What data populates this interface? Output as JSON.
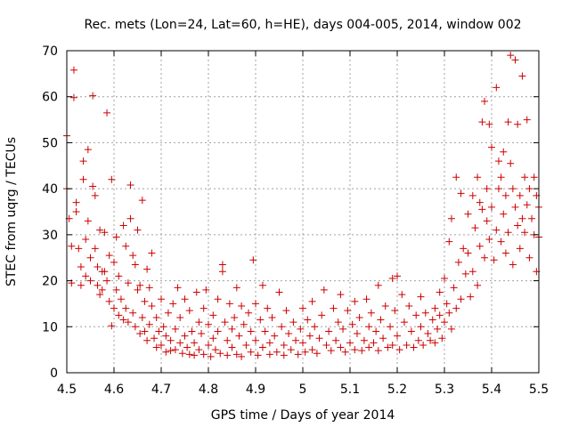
{
  "chart_data": {
    "type": "scatter",
    "title": "Rec. mets (Lon=24, Lat=60, h=HE), days 004-005, 2014, window 002",
    "xlabel": "GPS time / Days of year 2014",
    "ylabel": "STEC from uqrg / TECUs",
    "xlim": [
      4.5,
      5.5
    ],
    "ylim": [
      0,
      70
    ],
    "xticks": [
      "4.5",
      "4.6",
      "4.7",
      "4.8",
      "4.9",
      "5",
      "5.1",
      "5.2",
      "5.3",
      "5.4",
      "5.5"
    ],
    "yticks": [
      "0",
      "10",
      "20",
      "30",
      "40",
      "50",
      "60",
      "70"
    ],
    "grid": true,
    "marker": "+",
    "color": "#cc0000",
    "series": [
      {
        "points": [
          [
            4.5,
            51.5
          ],
          [
            4.5,
            40.0
          ],
          [
            4.505,
            33.5
          ],
          [
            4.51,
            27.5
          ],
          [
            4.51,
            19.5
          ],
          [
            4.515,
            65.8
          ],
          [
            4.515,
            59.8
          ],
          [
            4.52,
            37.0
          ],
          [
            4.52,
            35.0
          ],
          [
            4.525,
            27.0
          ],
          [
            4.53,
            23.0
          ],
          [
            4.53,
            19.0
          ],
          [
            4.535,
            46.0
          ],
          [
            4.535,
            42.0
          ],
          [
            4.54,
            29.0
          ],
          [
            4.54,
            21.0
          ],
          [
            4.545,
            48.5
          ],
          [
            4.545,
            33.0
          ],
          [
            4.55,
            25.0
          ],
          [
            4.55,
            20.0
          ],
          [
            4.555,
            60.2
          ],
          [
            4.555,
            40.5
          ],
          [
            4.56,
            38.5
          ],
          [
            4.56,
            27.0
          ],
          [
            4.565,
            23.0
          ],
          [
            4.565,
            19.0
          ],
          [
            4.57,
            31.0
          ],
          [
            4.57,
            17.0
          ],
          [
            4.575,
            22.0
          ],
          [
            4.575,
            18.0
          ],
          [
            4.58,
            30.5
          ],
          [
            4.58,
            22.0
          ],
          [
            4.585,
            56.5
          ],
          [
            4.585,
            20.0
          ],
          [
            4.59,
            25.5
          ],
          [
            4.59,
            15.5
          ],
          [
            4.595,
            42.0
          ],
          [
            4.595,
            10.2
          ],
          [
            4.6,
            24.0
          ],
          [
            4.6,
            14.0
          ],
          [
            4.605,
            29.5
          ],
          [
            4.605,
            18.0
          ],
          [
            4.61,
            21.0
          ],
          [
            4.61,
            12.5
          ],
          [
            4.615,
            16.0
          ],
          [
            4.62,
            32.0
          ],
          [
            4.62,
            11.5
          ],
          [
            4.625,
            27.5
          ],
          [
            4.625,
            14.0
          ],
          [
            4.63,
            19.5
          ],
          [
            4.63,
            11.0
          ],
          [
            4.635,
            40.8
          ],
          [
            4.635,
            33.5
          ],
          [
            4.64,
            25.5
          ],
          [
            4.64,
            13.0
          ],
          [
            4.645,
            23.5
          ],
          [
            4.645,
            10.0
          ],
          [
            4.65,
            31.0
          ],
          [
            4.65,
            18.0
          ],
          [
            4.655,
            19.0
          ],
          [
            4.655,
            8.5
          ],
          [
            4.66,
            37.5
          ],
          [
            4.66,
            12.0
          ],
          [
            4.665,
            15.5
          ],
          [
            4.665,
            9.0
          ],
          [
            4.67,
            22.5
          ],
          [
            4.67,
            7.0
          ],
          [
            4.675,
            18.5
          ],
          [
            4.675,
            10.5
          ],
          [
            4.68,
            26.0
          ],
          [
            4.68,
            14.5
          ],
          [
            4.685,
            7.5
          ],
          [
            4.69,
            12.0
          ],
          [
            4.69,
            5.5
          ],
          [
            4.695,
            9.0
          ],
          [
            4.7,
            16.0
          ],
          [
            4.7,
            6.0
          ],
          [
            4.705,
            10.0
          ],
          [
            4.71,
            8.0
          ],
          [
            4.71,
            4.5
          ],
          [
            4.715,
            13.0
          ],
          [
            4.72,
            7.0
          ],
          [
            4.72,
            4.8
          ],
          [
            4.725,
            15.0
          ],
          [
            4.73,
            9.5
          ],
          [
            4.73,
            5.0
          ],
          [
            4.735,
            18.5
          ],
          [
            4.74,
            12.0
          ],
          [
            4.74,
            6.5
          ],
          [
            4.745,
            4.2
          ],
          [
            4.75,
            16.0
          ],
          [
            4.75,
            8.0
          ],
          [
            4.755,
            5.5
          ],
          [
            4.76,
            13.5
          ],
          [
            4.76,
            4.0
          ],
          [
            4.765,
            9.0
          ],
          [
            4.77,
            6.5
          ],
          [
            4.77,
            3.8
          ],
          [
            4.775,
            17.5
          ],
          [
            4.78,
            11.0
          ],
          [
            4.78,
            5.0
          ],
          [
            4.785,
            8.5
          ],
          [
            4.79,
            14.0
          ],
          [
            4.79,
            4.0
          ],
          [
            4.795,
            18.0
          ],
          [
            4.8,
            10.5
          ],
          [
            4.8,
            6.0
          ],
          [
            4.805,
            3.5
          ],
          [
            4.81,
            12.5
          ],
          [
            4.81,
            7.5
          ],
          [
            4.815,
            5.0
          ],
          [
            4.82,
            16.0
          ],
          [
            4.82,
            9.0
          ],
          [
            4.825,
            4.2
          ],
          [
            4.83,
            23.5
          ],
          [
            4.83,
            22.0
          ],
          [
            4.835,
            11.0
          ],
          [
            4.84,
            7.0
          ],
          [
            4.84,
            3.8
          ],
          [
            4.845,
            15.0
          ],
          [
            4.85,
            9.5
          ],
          [
            4.85,
            5.5
          ],
          [
            4.855,
            12.0
          ],
          [
            4.86,
            18.5
          ],
          [
            4.86,
            4.0
          ],
          [
            4.865,
            8.0
          ],
          [
            4.87,
            14.5
          ],
          [
            4.87,
            3.5
          ],
          [
            4.875,
            10.5
          ],
          [
            4.88,
            6.0
          ],
          [
            4.885,
            13.0
          ],
          [
            4.89,
            9.0
          ],
          [
            4.89,
            4.5
          ],
          [
            4.895,
            24.5
          ],
          [
            4.9,
            15.0
          ],
          [
            4.9,
            7.0
          ],
          [
            4.905,
            3.8
          ],
          [
            4.91,
            11.5
          ],
          [
            4.915,
            19.0
          ],
          [
            4.915,
            5.5
          ],
          [
            4.92,
            9.0
          ],
          [
            4.925,
            14.0
          ],
          [
            4.93,
            6.5
          ],
          [
            4.93,
            4.0
          ],
          [
            4.935,
            12.0
          ],
          [
            4.94,
            8.0
          ],
          [
            4.945,
            4.5
          ],
          [
            4.95,
            17.5
          ],
          [
            4.955,
            10.0
          ],
          [
            4.96,
            6.0
          ],
          [
            4.96,
            3.8
          ],
          [
            4.965,
            13.5
          ],
          [
            4.97,
            8.5
          ],
          [
            4.975,
            5.0
          ],
          [
            4.98,
            11.0
          ],
          [
            4.985,
            7.0
          ],
          [
            4.99,
            4.0
          ],
          [
            4.995,
            9.5
          ],
          [
            5.0,
            14.0
          ],
          [
            5.0,
            6.5
          ],
          [
            5.005,
            4.5
          ],
          [
            5.01,
            11.5
          ],
          [
            5.015,
            8.0
          ],
          [
            5.02,
            15.5
          ],
          [
            5.02,
            5.0
          ],
          [
            5.025,
            10.0
          ],
          [
            5.03,
            4.2
          ],
          [
            5.035,
            7.5
          ],
          [
            5.04,
            12.5
          ],
          [
            5.045,
            18.0
          ],
          [
            5.05,
            6.0
          ],
          [
            5.055,
            9.0
          ],
          [
            5.06,
            4.8
          ],
          [
            5.065,
            14.0
          ],
          [
            5.07,
            7.0
          ],
          [
            5.075,
            11.0
          ],
          [
            5.08,
            17.0
          ],
          [
            5.08,
            5.5
          ],
          [
            5.085,
            9.5
          ],
          [
            5.09,
            4.5
          ],
          [
            5.095,
            13.5
          ],
          [
            5.1,
            6.5
          ],
          [
            5.105,
            10.5
          ],
          [
            5.11,
            15.5
          ],
          [
            5.11,
            5.0
          ],
          [
            5.115,
            8.5
          ],
          [
            5.12,
            12.0
          ],
          [
            5.125,
            4.8
          ],
          [
            5.13,
            7.0
          ],
          [
            5.135,
            16.0
          ],
          [
            5.14,
            10.0
          ],
          [
            5.14,
            5.5
          ],
          [
            5.145,
            13.0
          ],
          [
            5.15,
            6.5
          ],
          [
            5.155,
            9.0
          ],
          [
            5.16,
            19.0
          ],
          [
            5.16,
            4.8
          ],
          [
            5.165,
            11.5
          ],
          [
            5.17,
            7.5
          ],
          [
            5.175,
            14.5
          ],
          [
            5.18,
            5.5
          ],
          [
            5.185,
            10.0
          ],
          [
            5.19,
            20.5
          ],
          [
            5.19,
            6.0
          ],
          [
            5.195,
            13.5
          ],
          [
            5.2,
            21.0
          ],
          [
            5.2,
            8.0
          ],
          [
            5.205,
            5.0
          ],
          [
            5.21,
            17.0
          ],
          [
            5.215,
            11.0
          ],
          [
            5.22,
            6.0
          ],
          [
            5.225,
            14.5
          ],
          [
            5.23,
            9.0
          ],
          [
            5.235,
            5.5
          ],
          [
            5.24,
            12.5
          ],
          [
            5.245,
            7.0
          ],
          [
            5.25,
            16.5
          ],
          [
            5.25,
            10.0
          ],
          [
            5.255,
            6.0
          ],
          [
            5.26,
            13.0
          ],
          [
            5.265,
            8.5
          ],
          [
            5.27,
            7.0
          ],
          [
            5.275,
            11.5
          ],
          [
            5.28,
            14.0
          ],
          [
            5.28,
            6.5
          ],
          [
            5.285,
            9.5
          ],
          [
            5.29,
            17.5
          ],
          [
            5.29,
            12.5
          ],
          [
            5.295,
            7.5
          ],
          [
            5.3,
            20.5
          ],
          [
            5.3,
            11.0
          ],
          [
            5.305,
            15.0
          ],
          [
            5.31,
            28.5
          ],
          [
            5.31,
            13.0
          ],
          [
            5.315,
            33.5
          ],
          [
            5.315,
            9.5
          ],
          [
            5.32,
            18.5
          ],
          [
            5.325,
            42.5
          ],
          [
            5.325,
            14.0
          ],
          [
            5.33,
            24.0
          ],
          [
            5.335,
            39.0
          ],
          [
            5.335,
            16.0
          ],
          [
            5.34,
            27.0
          ],
          [
            5.345,
            21.5
          ],
          [
            5.35,
            34.5
          ],
          [
            5.35,
            26.0
          ],
          [
            5.355,
            16.5
          ],
          [
            5.36,
            38.5
          ],
          [
            5.36,
            22.0
          ],
          [
            5.365,
            31.5
          ],
          [
            5.37,
            42.5
          ],
          [
            5.37,
            19.0
          ],
          [
            5.375,
            37.0
          ],
          [
            5.375,
            27.5
          ],
          [
            5.38,
            54.5
          ],
          [
            5.38,
            35.5
          ],
          [
            5.385,
            59.0
          ],
          [
            5.385,
            25.0
          ],
          [
            5.39,
            40.0
          ],
          [
            5.39,
            33.0
          ],
          [
            5.395,
            54.0
          ],
          [
            5.395,
            29.0
          ],
          [
            5.4,
            49.0
          ],
          [
            5.4,
            36.0
          ],
          [
            5.405,
            24.5
          ],
          [
            5.41,
            62.0
          ],
          [
            5.41,
            31.0
          ],
          [
            5.415,
            46.0
          ],
          [
            5.415,
            40.0
          ],
          [
            5.42,
            42.5
          ],
          [
            5.42,
            28.5
          ],
          [
            5.425,
            48.0
          ],
          [
            5.425,
            34.5
          ],
          [
            5.43,
            38.5
          ],
          [
            5.43,
            26.0
          ],
          [
            5.435,
            54.5
          ],
          [
            5.435,
            30.5
          ],
          [
            5.44,
            69.0
          ],
          [
            5.44,
            45.5
          ],
          [
            5.445,
            40.0
          ],
          [
            5.445,
            23.5
          ],
          [
            5.45,
            68.0
          ],
          [
            5.45,
            36.0
          ],
          [
            5.455,
            54.0
          ],
          [
            5.455,
            32.0
          ],
          [
            5.46,
            38.5
          ],
          [
            5.46,
            27.0
          ],
          [
            5.465,
            64.5
          ],
          [
            5.465,
            33.5
          ],
          [
            5.47,
            42.5
          ],
          [
            5.47,
            30.5
          ],
          [
            5.475,
            55.0
          ],
          [
            5.475,
            36.5
          ],
          [
            5.48,
            40.0
          ],
          [
            5.48,
            25.0
          ],
          [
            5.485,
            33.5
          ],
          [
            5.49,
            42.5
          ],
          [
            5.49,
            30.0
          ],
          [
            5.495,
            38.5
          ],
          [
            5.495,
            22.0
          ],
          [
            5.5,
            29.5
          ],
          [
            5.5,
            36.0
          ]
        ]
      }
    ]
  }
}
